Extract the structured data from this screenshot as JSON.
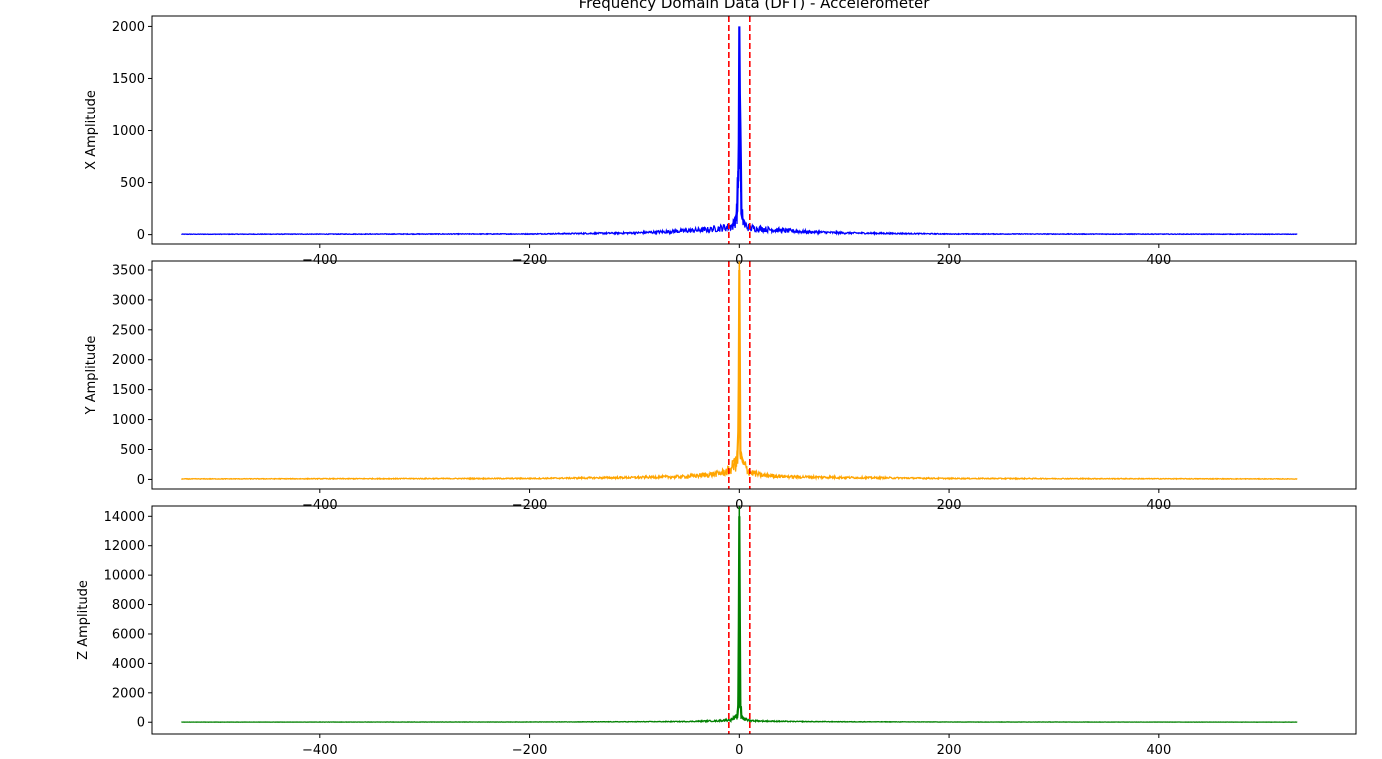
{
  "chart_data": {
    "title": "Frequency Domain Data (DFT) - Accelerometer",
    "type": "line",
    "xlim": [
      -560,
      588
    ],
    "x_ticks": [
      -400,
      -200,
      0,
      200,
      400
    ],
    "x_tick_labels": [
      "−400",
      "−200",
      "0",
      "200",
      "400"
    ],
    "frequency_range": [
      -532,
      532
    ],
    "cutoff_lines": {
      "positions": [
        -10,
        10
      ],
      "color": "#ff0000",
      "style": "dashed"
    },
    "subplots": [
      {
        "ylabel": "X Amplitude",
        "color": "#0000ff",
        "ylim": [
          -90,
          2100
        ],
        "y_ticks": [
          0,
          500,
          1000,
          1500,
          2000
        ],
        "peak": {
          "x": 0,
          "y": 2000
        },
        "profile": [
          {
            "x": -532,
            "y": 5
          },
          {
            "x": -200,
            "y": 8
          },
          {
            "x": -100,
            "y": 20
          },
          {
            "x": -60,
            "y": 40
          },
          {
            "x": -30,
            "y": 60
          },
          {
            "x": -10,
            "y": 90
          },
          {
            "x": -5,
            "y": 120
          },
          {
            "x": -2,
            "y": 300
          },
          {
            "x": -1,
            "y": 600
          },
          {
            "x": 0,
            "y": 2000
          },
          {
            "x": 1,
            "y": 950
          },
          {
            "x": 2,
            "y": 250
          },
          {
            "x": 5,
            "y": 110
          },
          {
            "x": 10,
            "y": 80
          },
          {
            "x": 30,
            "y": 60
          },
          {
            "x": 60,
            "y": 35
          },
          {
            "x": 100,
            "y": 20
          },
          {
            "x": 200,
            "y": 8
          },
          {
            "x": 532,
            "y": 5
          }
        ]
      },
      {
        "ylabel": "Y Amplitude",
        "color": "#ffa500",
        "ylim": [
          -160,
          3650
        ],
        "y_ticks": [
          0,
          500,
          1000,
          1500,
          2000,
          2500,
          3000,
          3500
        ],
        "peak": {
          "x": 0,
          "y": 3500
        },
        "profile": [
          {
            "x": -532,
            "y": 10
          },
          {
            "x": -200,
            "y": 20
          },
          {
            "x": -100,
            "y": 40
          },
          {
            "x": -50,
            "y": 60
          },
          {
            "x": -20,
            "y": 120
          },
          {
            "x": -10,
            "y": 180
          },
          {
            "x": -5,
            "y": 300
          },
          {
            "x": -2,
            "y": 400
          },
          {
            "x": -1,
            "y": 800
          },
          {
            "x": 0,
            "y": 3500
          },
          {
            "x": 1,
            "y": 700
          },
          {
            "x": 2,
            "y": 380
          },
          {
            "x": 5,
            "y": 280
          },
          {
            "x": 10,
            "y": 150
          },
          {
            "x": 20,
            "y": 90
          },
          {
            "x": 50,
            "y": 55
          },
          {
            "x": 100,
            "y": 40
          },
          {
            "x": 200,
            "y": 20
          },
          {
            "x": 532,
            "y": 10
          }
        ]
      },
      {
        "ylabel": "Z Amplitude",
        "color": "#008000",
        "ylim": [
          -800,
          14700
        ],
        "y_ticks": [
          0,
          2000,
          4000,
          6000,
          8000,
          10000,
          12000,
          14000
        ],
        "peak": {
          "x": 0,
          "y": 14000
        },
        "profile": [
          {
            "x": -532,
            "y": 10
          },
          {
            "x": -200,
            "y": 20
          },
          {
            "x": -100,
            "y": 40
          },
          {
            "x": -50,
            "y": 60
          },
          {
            "x": -20,
            "y": 120
          },
          {
            "x": -10,
            "y": 200
          },
          {
            "x": -5,
            "y": 300
          },
          {
            "x": -2,
            "y": 500
          },
          {
            "x": -1,
            "y": 1200
          },
          {
            "x": 0,
            "y": 14000
          },
          {
            "x": 1,
            "y": 1500
          },
          {
            "x": 2,
            "y": 500
          },
          {
            "x": 5,
            "y": 250
          },
          {
            "x": 10,
            "y": 150
          },
          {
            "x": 20,
            "y": 100
          },
          {
            "x": 50,
            "y": 60
          },
          {
            "x": 100,
            "y": 40
          },
          {
            "x": 200,
            "y": 20
          },
          {
            "x": 532,
            "y": 10
          }
        ]
      }
    ]
  }
}
